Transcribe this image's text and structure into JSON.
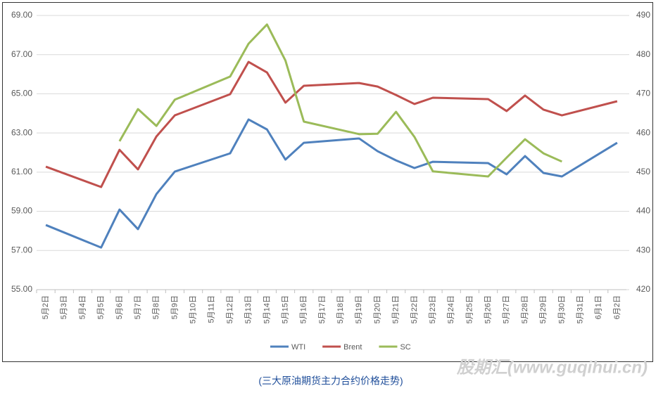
{
  "chart_data": {
    "type": "line",
    "categories": [
      "5月2日",
      "5月3日",
      "5月4日",
      "5月5日",
      "5月6日",
      "5月7日",
      "5月8日",
      "5月9日",
      "5月10日",
      "5月11日",
      "5月12日",
      "5月13日",
      "5月14日",
      "5月15日",
      "5月16日",
      "5月17日",
      "5月18日",
      "5月19日",
      "5月20日",
      "5月21日",
      "5月22日",
      "5月23日",
      "5月24日",
      "5月25日",
      "5月26日",
      "5月27日",
      "5月28日",
      "5月29日",
      "5月30日",
      "5月31日",
      "6月1日",
      "6月2日"
    ],
    "series": [
      {
        "name": "WTI",
        "color": "#4f81bd",
        "values": [
          58.3,
          null,
          null,
          57.15,
          59.09,
          58.09,
          59.88,
          61.03,
          null,
          null,
          61.96,
          63.69,
          63.18,
          61.64,
          62.5,
          null,
          null,
          62.72,
          62.07,
          61.6,
          61.21,
          61.53,
          null,
          null,
          61.46,
          60.89,
          61.82,
          60.96,
          60.78,
          null,
          null,
          62.5
        ]
      },
      {
        "name": "Brent",
        "color": "#c0504d",
        "values": [
          61.28,
          null,
          null,
          60.24,
          62.14,
          61.14,
          62.82,
          63.9,
          null,
          null,
          64.98,
          66.63,
          66.09,
          64.55,
          65.41,
          null,
          null,
          65.55,
          65.37,
          64.94,
          64.48,
          64.8,
          null,
          null,
          64.73,
          64.12,
          64.91,
          64.19,
          63.9,
          null,
          null,
          64.62
        ]
      },
      {
        "name": "SC",
        "color": "#9bbb59",
        "axis": "y2",
        "values": [
          null,
          null,
          null,
          null,
          457.9,
          466.1,
          461.8,
          468.5,
          null,
          null,
          474.4,
          482.8,
          487.7,
          478.5,
          462.9,
          null,
          null,
          459.7,
          459.8,
          465.4,
          459.0,
          450.2,
          null,
          null,
          448.9,
          453.7,
          458.4,
          454.8,
          452.7,
          null,
          null,
          null
        ]
      }
    ],
    "ylim": [
      55,
      69
    ],
    "yticks": [
      {
        "value": 55,
        "label": "55.00"
      },
      {
        "value": 57,
        "label": "57.00"
      },
      {
        "value": 59,
        "label": "59.00"
      },
      {
        "value": 61,
        "label": "61.00"
      },
      {
        "value": 63,
        "label": "63.00"
      },
      {
        "value": 65,
        "label": "65.00"
      },
      {
        "value": 67,
        "label": "67.00"
      },
      {
        "value": 69,
        "label": "69.00"
      }
    ],
    "y2lim": [
      420,
      490
    ],
    "y2ticks": [
      420,
      430,
      440,
      450,
      460,
      470,
      480,
      490
    ],
    "grid": true,
    "connect_gaps": true,
    "legend": "bottom",
    "caption": "(三大原油期货主力合约价格走势)",
    "watermark": "股期汇(www.guqihui.cn)"
  }
}
